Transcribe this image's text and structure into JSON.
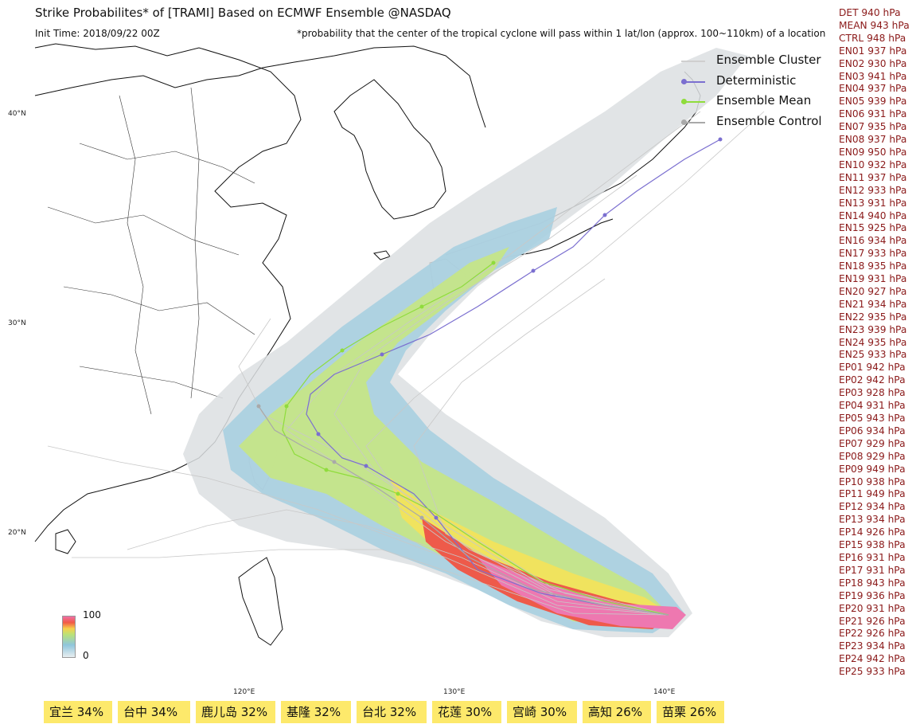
{
  "header": {
    "title": "Strike Probabilites* of [TRAMI] Based on ECMWF Ensemble  @NASDAQ",
    "init_time": "Init Time: 2018/09/22 00Z",
    "footnote": "*probability that the center of the tropical cyclone will pass within 1 lat/lon (approx. 100~110km) of a location"
  },
  "legend": {
    "items": [
      {
        "label": "Ensemble Cluster",
        "color": "#cfcfcf"
      },
      {
        "label": "Deterministic",
        "color": "#7b6fd0"
      },
      {
        "label": "Ensemble Mean",
        "color": "#8fdc3c"
      },
      {
        "label": "Ensemble Control",
        "color": "#a9a9a9"
      }
    ]
  },
  "pressures": [
    "DET 940 hPa",
    "MEAN 943 hPa",
    "CTRL 948 hPa",
    "EN01 937 hPa",
    "EN02 930 hPa",
    "EN03 941 hPa",
    "EN04 937 hPa",
    "EN05 939 hPa",
    "EN06 931 hPa",
    "EN07 935 hPa",
    "EN08 937 hPa",
    "EN09 950 hPa",
    "EN10 932 hPa",
    "EN11 937 hPa",
    "EN12 933 hPa",
    "EN13 931 hPa",
    "EN14 940 hPa",
    "EN15 925 hPa",
    "EN16 934 hPa",
    "EN17 933 hPa",
    "EN18 935 hPa",
    "EN19 931 hPa",
    "EN20 927 hPa",
    "EN21 934 hPa",
    "EN22 935 hPa",
    "EN23 939 hPa",
    "EN24 935 hPa",
    "EN25 933 hPa",
    "EP01 942 hPa",
    "EP02 942 hPa",
    "EP03 928 hPa",
    "EP04 931 hPa",
    "EP05 943 hPa",
    "EP06 934 hPa",
    "EP07 929 hPa",
    "EP08 929 hPa",
    "EP09 949 hPa",
    "EP10 938 hPa",
    "EP11 949 hPa",
    "EP12 934 hPa",
    "EP13 934 hPa",
    "EP14 926 hPa",
    "EP15 938 hPa",
    "EP16 931 hPa",
    "EP17 931 hPa",
    "EP18 943 hPa",
    "EP19 936 hPa",
    "EP20 931 hPa",
    "EP21 926 hPa",
    "EP22 926 hPa",
    "EP23 934 hPa",
    "EP24 942 hPa",
    "EP25 933 hPa"
  ],
  "axes": {
    "lat_labels": [
      "40°N",
      "30°N",
      "20°N"
    ],
    "lon_labels": [
      "120°E",
      "130°E",
      "140°E"
    ]
  },
  "colorbar": {
    "max": "100",
    "min": "0"
  },
  "cities": [
    "宜兰  34%",
    "台中  34%",
    "鹿儿岛  32%",
    "基隆  32%",
    "台北  32%",
    "花莲  30%",
    "宫崎  30%",
    "高知  26%",
    "苗栗  26%"
  ],
  "colors": {
    "high": "#ee5a4a",
    "core": "#ee78b0",
    "mid": "#f3e15a",
    "lowmid": "#b9e07a",
    "low": "#9fc9dc",
    "faint": "#d9dde0"
  }
}
